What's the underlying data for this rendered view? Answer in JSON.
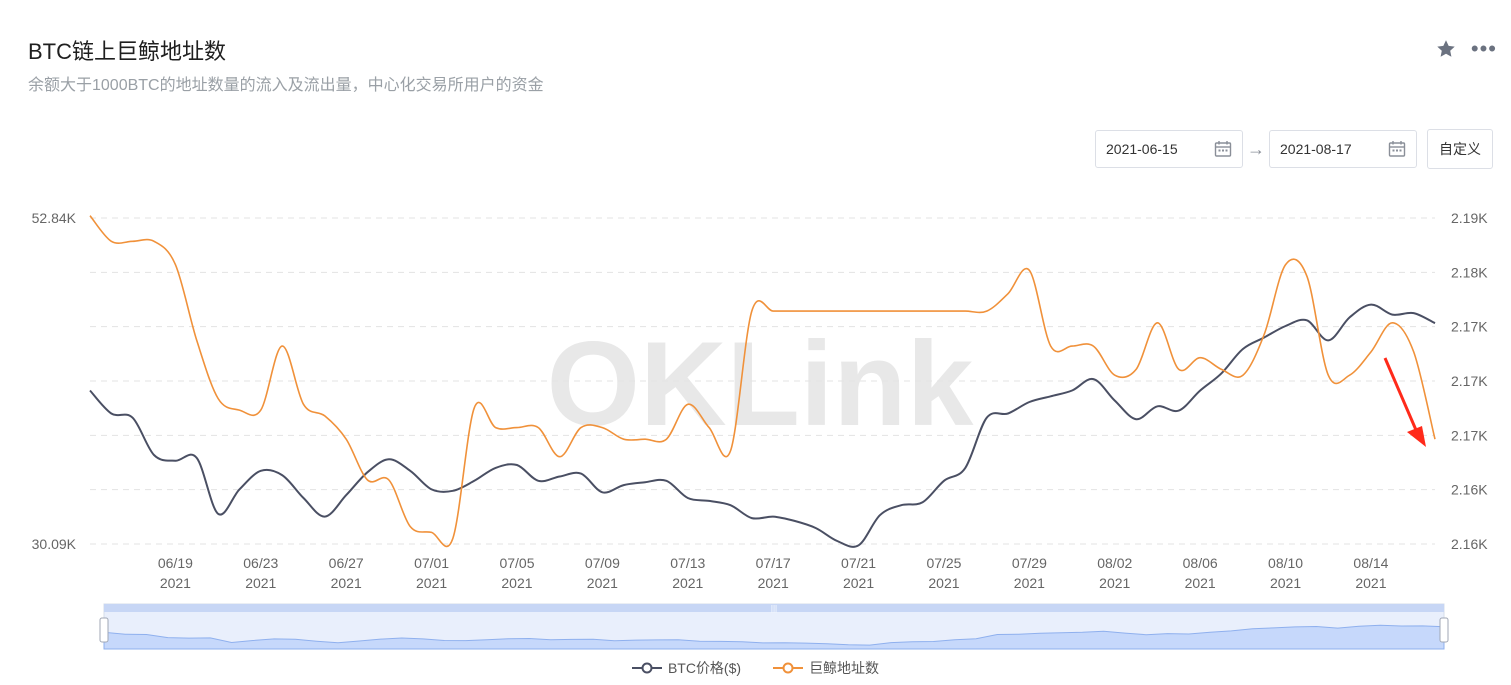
{
  "header": {
    "title": "BTC链上巨鲸地址数",
    "subtitle": "余额大于1000BTC的地址数量的流入及流出量，中心化交易所用户的资金",
    "star_icon": "star-icon",
    "more_icon": "more-dots-icon"
  },
  "date_range": {
    "start": "2021-06-15",
    "end": "2021-08-17",
    "custom_label": "自定义",
    "calendar_icon": "calendar-icon",
    "arrow_icon": "arrow-right-icon"
  },
  "watermark": "OKLink",
  "chart_data": {
    "type": "line",
    "x_ticks": [
      {
        "date": "06/19",
        "year": "2021"
      },
      {
        "date": "06/23",
        "year": "2021"
      },
      {
        "date": "06/27",
        "year": "2021"
      },
      {
        "date": "07/01",
        "year": "2021"
      },
      {
        "date": "07/05",
        "year": "2021"
      },
      {
        "date": "07/09",
        "year": "2021"
      },
      {
        "date": "07/13",
        "year": "2021"
      },
      {
        "date": "07/17",
        "year": "2021"
      },
      {
        "date": "07/21",
        "year": "2021"
      },
      {
        "date": "07/25",
        "year": "2021"
      },
      {
        "date": "07/29",
        "year": "2021"
      },
      {
        "date": "08/02",
        "year": "2021"
      },
      {
        "date": "08/06",
        "year": "2021"
      },
      {
        "date": "08/10",
        "year": "2021"
      },
      {
        "date": "08/14",
        "year": "2021"
      }
    ],
    "x_range": [
      "2021-06-15",
      "2021-08-17"
    ],
    "y_left": {
      "ticks": [
        "52.84K",
        "30.09K"
      ],
      "range": [
        30090,
        52840
      ]
    },
    "y_right": {
      "ticks": [
        "2.19K",
        "2.18K",
        "2.17K",
        "2.17K",
        "2.17K",
        "2.16K",
        "2.16K"
      ],
      "range": [
        2160,
        2188
      ]
    },
    "grid": "horizontal-dashed",
    "legend_position": "bottom-center",
    "series": [
      {
        "name": "BTC价格($)",
        "axis": "left",
        "color": "#4a4f63",
        "points": [
          [
            "2021-06-15",
            40800
          ],
          [
            "2021-06-16",
            39200
          ],
          [
            "2021-06-17",
            38900
          ],
          [
            "2021-06-18",
            36300
          ],
          [
            "2021-06-19",
            35900
          ],
          [
            "2021-06-20",
            36100
          ],
          [
            "2021-06-21",
            32200
          ],
          [
            "2021-06-22",
            33900
          ],
          [
            "2021-06-23",
            35200
          ],
          [
            "2021-06-24",
            34900
          ],
          [
            "2021-06-25",
            33300
          ],
          [
            "2021-06-26",
            32000
          ],
          [
            "2021-06-27",
            33500
          ],
          [
            "2021-06-28",
            35100
          ],
          [
            "2021-06-29",
            36000
          ],
          [
            "2021-06-30",
            35200
          ],
          [
            "2021-07-01",
            33900
          ],
          [
            "2021-07-02",
            33800
          ],
          [
            "2021-07-03",
            34500
          ],
          [
            "2021-07-04",
            35400
          ],
          [
            "2021-07-05",
            35600
          ],
          [
            "2021-07-06",
            34500
          ],
          [
            "2021-07-07",
            34800
          ],
          [
            "2021-07-08",
            35000
          ],
          [
            "2021-07-09",
            33700
          ],
          [
            "2021-07-10",
            34200
          ],
          [
            "2021-07-11",
            34400
          ],
          [
            "2021-07-12",
            34500
          ],
          [
            "2021-07-13",
            33300
          ],
          [
            "2021-07-14",
            33100
          ],
          [
            "2021-07-15",
            32800
          ],
          [
            "2021-07-16",
            31900
          ],
          [
            "2021-07-17",
            32000
          ],
          [
            "2021-07-18",
            31700
          ],
          [
            "2021-07-19",
            31200
          ],
          [
            "2021-07-20",
            30300
          ],
          [
            "2021-07-21",
            30000
          ],
          [
            "2021-07-22",
            32100
          ],
          [
            "2021-07-23",
            32800
          ],
          [
            "2021-07-24",
            33000
          ],
          [
            "2021-07-25",
            34500
          ],
          [
            "2021-07-26",
            35400
          ],
          [
            "2021-07-27",
            38900
          ],
          [
            "2021-07-28",
            39200
          ],
          [
            "2021-07-29",
            40000
          ],
          [
            "2021-07-30",
            40400
          ],
          [
            "2021-07-31",
            40800
          ],
          [
            "2021-08-01",
            41600
          ],
          [
            "2021-08-02",
            40100
          ],
          [
            "2021-08-03",
            38800
          ],
          [
            "2021-08-04",
            39700
          ],
          [
            "2021-08-05",
            39400
          ],
          [
            "2021-08-06",
            40800
          ],
          [
            "2021-08-07",
            42000
          ],
          [
            "2021-08-08",
            43700
          ],
          [
            "2021-08-09",
            44500
          ],
          [
            "2021-08-10",
            45300
          ],
          [
            "2021-08-11",
            45700
          ],
          [
            "2021-08-12",
            44300
          ],
          [
            "2021-08-13",
            45900
          ],
          [
            "2021-08-14",
            46800
          ],
          [
            "2021-08-15",
            46100
          ],
          [
            "2021-08-16",
            46200
          ],
          [
            "2021-08-17",
            45500
          ]
        ]
      },
      {
        "name": "巨鲸地址数",
        "axis": "right",
        "color": "#f0913a",
        "points": [
          [
            "2021-06-15",
            2188.2
          ],
          [
            "2021-06-16",
            2186.0
          ],
          [
            "2021-06-17",
            2186.0
          ],
          [
            "2021-06-18",
            2186.0
          ],
          [
            "2021-06-19",
            2184.0
          ],
          [
            "2021-06-20",
            2177.5
          ],
          [
            "2021-06-21",
            2172.5
          ],
          [
            "2021-06-22",
            2171.5
          ],
          [
            "2021-06-23",
            2171.5
          ],
          [
            "2021-06-24",
            2177.0
          ],
          [
            "2021-06-25",
            2172.0
          ],
          [
            "2021-06-26",
            2171.0
          ],
          [
            "2021-06-27",
            2169.0
          ],
          [
            "2021-06-28",
            2165.5
          ],
          [
            "2021-06-29",
            2165.5
          ],
          [
            "2021-06-30",
            2161.5
          ],
          [
            "2021-07-01",
            2161.0
          ],
          [
            "2021-07-02",
            2160.5
          ],
          [
            "2021-07-03",
            2171.7
          ],
          [
            "2021-07-04",
            2170.0
          ],
          [
            "2021-07-05",
            2170.0
          ],
          [
            "2021-07-06",
            2170.0
          ],
          [
            "2021-07-07",
            2167.5
          ],
          [
            "2021-07-08",
            2170.0
          ],
          [
            "2021-07-09",
            2170.0
          ],
          [
            "2021-07-10",
            2169.0
          ],
          [
            "2021-07-11",
            2169.0
          ],
          [
            "2021-07-12",
            2169.0
          ],
          [
            "2021-07-13",
            2172.0
          ],
          [
            "2021-07-14",
            2170.0
          ],
          [
            "2021-07-15",
            2168.0
          ],
          [
            "2021-07-16",
            2180.0
          ],
          [
            "2021-07-17",
            2180.0
          ],
          [
            "2021-07-18",
            2180.0
          ],
          [
            "2021-07-19",
            2180.0
          ],
          [
            "2021-07-20",
            2180.0
          ],
          [
            "2021-07-21",
            2180.0
          ],
          [
            "2021-07-22",
            2180.0
          ],
          [
            "2021-07-23",
            2180.0
          ],
          [
            "2021-07-24",
            2180.0
          ],
          [
            "2021-07-25",
            2180.0
          ],
          [
            "2021-07-26",
            2180.0
          ],
          [
            "2021-07-27",
            2180.0
          ],
          [
            "2021-07-28",
            2181.5
          ],
          [
            "2021-07-29",
            2183.5
          ],
          [
            "2021-07-30",
            2177.0
          ],
          [
            "2021-07-31",
            2177.0
          ],
          [
            "2021-08-01",
            2177.0
          ],
          [
            "2021-08-02",
            2174.5
          ],
          [
            "2021-08-03",
            2175.0
          ],
          [
            "2021-08-04",
            2179.0
          ],
          [
            "2021-08-05",
            2175.0
          ],
          [
            "2021-08-06",
            2176.0
          ],
          [
            "2021-08-07",
            2175.0
          ],
          [
            "2021-08-08",
            2174.5
          ],
          [
            "2021-08-09",
            2178.0
          ],
          [
            "2021-08-10",
            2184.0
          ],
          [
            "2021-08-11",
            2183.0
          ],
          [
            "2021-08-12",
            2174.5
          ],
          [
            "2021-08-13",
            2174.5
          ],
          [
            "2021-08-14",
            2176.5
          ],
          [
            "2021-08-15",
            2179.0
          ],
          [
            "2021-08-16",
            2176.5
          ],
          [
            "2021-08-17",
            2169.0
          ]
        ]
      }
    ]
  }
}
